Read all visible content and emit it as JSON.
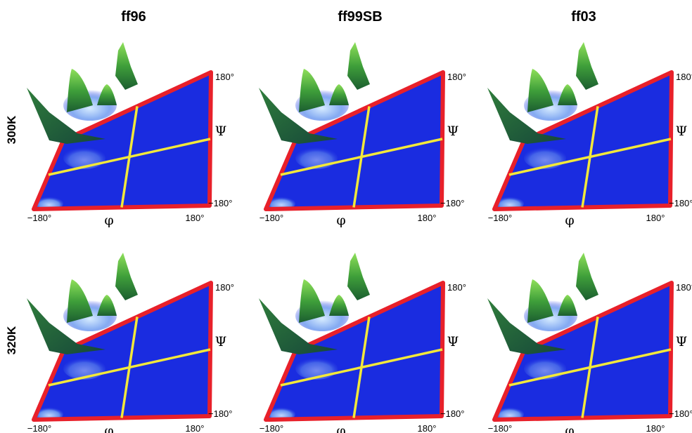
{
  "columns": [
    {
      "label": "ff96"
    },
    {
      "label": "ff99SB"
    },
    {
      "label": "ff03"
    }
  ],
  "rows": [
    {
      "label": "300K"
    },
    {
      "label": "320K"
    }
  ],
  "axes": {
    "phi_symbol": "φ",
    "psi_symbol": "Ψ",
    "tick_min": "−180°",
    "tick_max": "180°"
  },
  "colors": {
    "plane": "#1a2ce0",
    "frame": "#e8202a",
    "crosshair": "#f2e83a",
    "peak_base": "#1f7a2e",
    "peak_light": "#7fd24a"
  }
}
